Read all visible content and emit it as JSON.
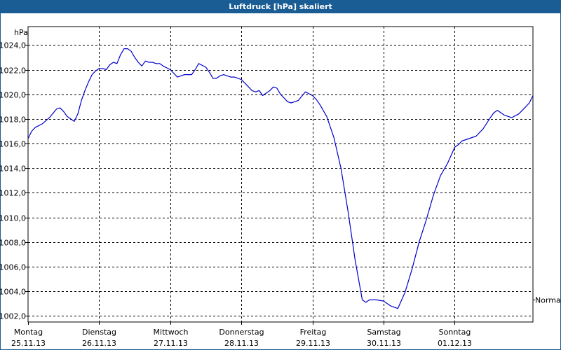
{
  "window": {
    "title": "Luftdruck [hPa] skaliert"
  },
  "chart_data": {
    "type": "line",
    "title": "Luftdruck [hPa] skaliert",
    "ylabel": "hPa",
    "ylim": [
      1001.5,
      1025.5
    ],
    "yticks": [
      1002,
      1004,
      1006,
      1008,
      1010,
      1012,
      1014,
      1016,
      1018,
      1020,
      1022,
      1024
    ],
    "ytick_labels": [
      "1002,0",
      "1004,0",
      "1006,0",
      "1008,0",
      "1010,0",
      "1012,0",
      "1014,0",
      "1016,0",
      "1018,0",
      "1020,0",
      "1022,0",
      "1024,0"
    ],
    "xlim": [
      0,
      7.1
    ],
    "days": [
      {
        "name": "Montag",
        "date": "25.11.13"
      },
      {
        "name": "Dienstag",
        "date": "26.11.13"
      },
      {
        "name": "Mittwoch",
        "date": "27.11.13"
      },
      {
        "name": "Donnerstag",
        "date": "28.11.13"
      },
      {
        "name": "Freitag",
        "date": "29.11.13"
      },
      {
        "name": "Samstag",
        "date": "30.11.13"
      },
      {
        "name": "Sonntag",
        "date": "01.12.13"
      }
    ],
    "grid": true,
    "reference_lines": [
      {
        "label": "Normal",
        "y": 1003.3
      }
    ],
    "series": [
      {
        "color": "#0000cc",
        "x": [
          0,
          0.05,
          0.1,
          0.2,
          0.3,
          0.4,
          0.45,
          0.5,
          0.55,
          0.6,
          0.65,
          0.7,
          0.75,
          0.8,
          0.85,
          0.9,
          0.95,
          1.0,
          1.05,
          1.1,
          1.15,
          1.2,
          1.25,
          1.3,
          1.35,
          1.4,
          1.45,
          1.5,
          1.55,
          1.6,
          1.65,
          1.7,
          1.75,
          1.8,
          1.85,
          1.9,
          2.0,
          2.1,
          2.2,
          2.3,
          2.35,
          2.4,
          2.5,
          2.55,
          2.6,
          2.65,
          2.7,
          2.75,
          2.8,
          2.85,
          2.9,
          3.0,
          3.1,
          3.15,
          3.2,
          3.25,
          3.3,
          3.4,
          3.45,
          3.5,
          3.55,
          3.6,
          3.65,
          3.7,
          3.75,
          3.8,
          3.9,
          4.0,
          4.05,
          4.1,
          4.2,
          4.3,
          4.4,
          4.5,
          4.6,
          4.7,
          4.75,
          4.8,
          4.9,
          5.0,
          5.1,
          5.15,
          5.2,
          5.3,
          5.4,
          5.5,
          5.6,
          5.7,
          5.8,
          5.9,
          6.0,
          6.05,
          6.1,
          6.2,
          6.3,
          6.4,
          6.5,
          6.55,
          6.6,
          6.7,
          6.8,
          6.9,
          7.0,
          7.05,
          7.1
        ],
        "y": [
          1016.4,
          1017.0,
          1017.3,
          1017.6,
          1018.1,
          1018.8,
          1018.9,
          1018.6,
          1018.2,
          1018.0,
          1017.8,
          1018.4,
          1019.5,
          1020.3,
          1021.0,
          1021.6,
          1021.9,
          1022.1,
          1022.1,
          1022.0,
          1022.4,
          1022.6,
          1022.5,
          1023.2,
          1023.7,
          1023.7,
          1023.5,
          1023.0,
          1022.6,
          1022.3,
          1022.7,
          1022.6,
          1022.6,
          1022.5,
          1022.5,
          1022.3,
          1022.0,
          1021.4,
          1021.6,
          1021.6,
          1022.0,
          1022.5,
          1022.2,
          1021.8,
          1021.3,
          1021.3,
          1021.5,
          1021.6,
          1021.5,
          1021.4,
          1021.4,
          1021.2,
          1020.6,
          1020.3,
          1020.2,
          1020.3,
          1019.9,
          1020.3,
          1020.6,
          1020.5,
          1020.0,
          1019.7,
          1019.4,
          1019.3,
          1019.4,
          1019.5,
          1020.2,
          1019.9,
          1019.6,
          1019.2,
          1018.2,
          1016.5,
          1014.0,
          1010.5,
          1006.5,
          1003.3,
          1003.1,
          1003.3,
          1003.3,
          1003.2,
          1002.8,
          1002.7,
          1002.6,
          1003.9,
          1005.8,
          1008.0,
          1009.8,
          1011.8,
          1013.4,
          1014.4,
          1015.7,
          1015.9,
          1016.2,
          1016.4,
          1016.6,
          1017.2,
          1018.1,
          1018.5,
          1018.7,
          1018.3,
          1018.1,
          1018.4,
          1019.0,
          1019.3,
          1019.9
        ]
      }
    ]
  }
}
